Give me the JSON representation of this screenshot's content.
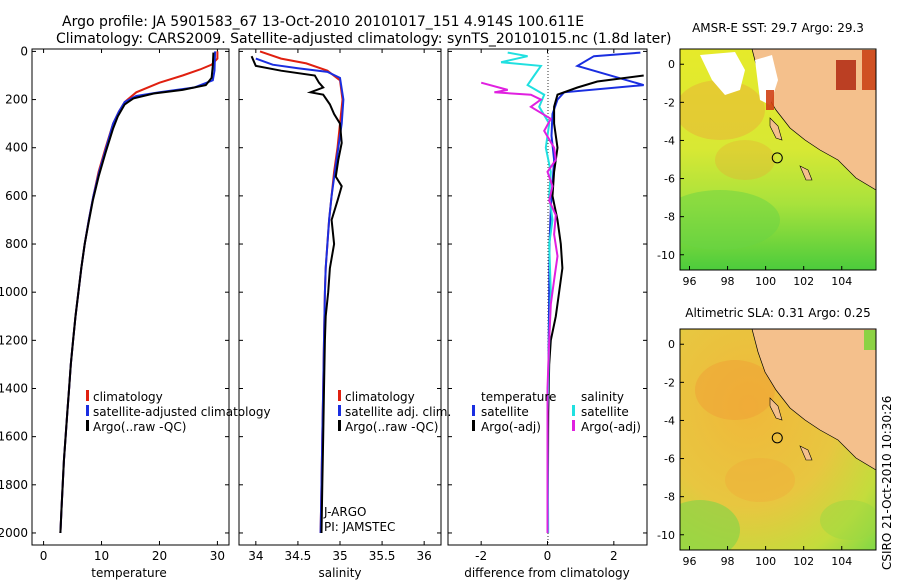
{
  "header": {
    "line1": "Argo profile: JA 5901583_67 13-Oct-2010 20101017_151 4.914S 100.611E",
    "line2": "Climatology: CARS2009. Satellite-adjusted climatology: synTS_20101015.nc (1.8d later)"
  },
  "side_stamp": "CSIRO 21-Oct-2010 10:30:26",
  "colors": {
    "climatology": "#e02010",
    "satellite": "#1a2ee0",
    "argo": "#000000",
    "argo_sal": "#e020e0",
    "sat_sal": "#20e0e0"
  },
  "chart_data": [
    {
      "type": "line",
      "id": "temperature",
      "xlabel": "temperature",
      "ylabel": "",
      "xlim": [
        -2,
        32
      ],
      "ylim": [
        2050,
        0
      ],
      "xticks": [
        0,
        10,
        20,
        30
      ],
      "xtick_labels": [
        "0",
        "10",
        "20",
        "30"
      ],
      "yticks": [
        0,
        200,
        400,
        600,
        800,
        1000,
        1200,
        1400,
        1600,
        1800,
        2000
      ],
      "ytick_labels": [
        "0",
        "200",
        "400",
        "600",
        "800",
        "1000",
        "1200",
        "1400",
        "1600",
        "1800",
        "2000"
      ],
      "legend": {
        "position": "bottom-right",
        "entries": [
          "climatology",
          "satellite-adjusted climatology",
          "Argo(..raw -QC)"
        ]
      },
      "series": [
        {
          "name": "climatology",
          "color": "#e02010",
          "points": [
            [
              30,
              0
            ],
            [
              30,
              30
            ],
            [
              29,
              55
            ],
            [
              27,
              75
            ],
            [
              24,
              100
            ],
            [
              20,
              130
            ],
            [
              16,
              170
            ],
            [
              14,
              210
            ],
            [
              13,
              250
            ],
            [
              12,
              300
            ],
            [
              10.7,
              400
            ],
            [
              9.5,
              500
            ],
            [
              8.6,
              600
            ],
            [
              7.8,
              700
            ],
            [
              7.1,
              800
            ],
            [
              6.5,
              900
            ],
            [
              6,
              1000
            ],
            [
              5.5,
              1100
            ],
            [
              5.1,
              1200
            ],
            [
              4.7,
              1300
            ],
            [
              4.4,
              1400
            ],
            [
              4.1,
              1500
            ],
            [
              3.8,
              1600
            ],
            [
              3.5,
              1700
            ],
            [
              3.3,
              1800
            ],
            [
              3.1,
              1900
            ],
            [
              2.9,
              2000
            ]
          ]
        },
        {
          "name": "satellite-adjusted climatology",
          "color": "#1a2ee0",
          "points": [
            [
              29.6,
              0
            ],
            [
              29.5,
              80
            ],
            [
              29.2,
              120
            ],
            [
              26,
              150
            ],
            [
              20,
              170
            ],
            [
              16,
              185
            ],
            [
              14,
              210
            ],
            [
              13,
              250
            ],
            [
              12,
              300
            ],
            [
              10.8,
              400
            ],
            [
              9.6,
              500
            ],
            [
              8.6,
              600
            ],
            [
              7.8,
              700
            ],
            [
              7.1,
              800
            ],
            [
              6.5,
              900
            ],
            [
              6,
              1000
            ],
            [
              5.5,
              1100
            ],
            [
              5.1,
              1200
            ],
            [
              4.7,
              1300
            ],
            [
              4.4,
              1400
            ],
            [
              4.1,
              1500
            ],
            [
              3.8,
              1600
            ],
            [
              3.5,
              1700
            ],
            [
              3.3,
              1800
            ],
            [
              3.1,
              1900
            ],
            [
              2.9,
              2000
            ]
          ]
        },
        {
          "name": "Argo(..raw -QC)",
          "color": "#000000",
          "points": [
            [
              29.3,
              5
            ],
            [
              29.2,
              60
            ],
            [
              29,
              110
            ],
            [
              28,
              140
            ],
            [
              24,
              160
            ],
            [
              19,
              175
            ],
            [
              15.5,
              195
            ],
            [
              14,
              220
            ],
            [
              12.8,
              270
            ],
            [
              12,
              320
            ],
            [
              10.7,
              420
            ],
            [
              9.5,
              520
            ],
            [
              8.5,
              620
            ],
            [
              7.7,
              720
            ],
            [
              7.1,
              800
            ],
            [
              6.5,
              900
            ],
            [
              6,
              1000
            ],
            [
              5.5,
              1100
            ],
            [
              5.1,
              1200
            ],
            [
              4.7,
              1300
            ],
            [
              4.4,
              1400
            ],
            [
              4.1,
              1500
            ],
            [
              3.8,
              1600
            ],
            [
              3.5,
              1700
            ],
            [
              3.3,
              1800
            ],
            [
              3.1,
              1900
            ],
            [
              2.9,
              2000
            ]
          ]
        }
      ]
    },
    {
      "type": "line",
      "id": "salinity",
      "xlabel": "salinity",
      "xlim": [
        33.8,
        36.2
      ],
      "ylim": [
        2050,
        0
      ],
      "xticks": [
        34,
        34.5,
        35,
        35.5,
        36
      ],
      "xtick_labels": [
        "34",
        "34.5",
        "35",
        "35.5",
        "36"
      ],
      "legend": {
        "position": "bottom-right",
        "entries": [
          "climatology",
          "satellite adj. clim.",
          "Argo(..raw -QC)"
        ]
      },
      "annotations": [
        "J-ARGO",
        "PI: JAMSTEC"
      ],
      "series": [
        {
          "name": "climatology",
          "color": "#e02010",
          "points": [
            [
              34.05,
              0
            ],
            [
              34.3,
              30
            ],
            [
              34.6,
              50
            ],
            [
              34.85,
              80
            ],
            [
              35,
              120
            ],
            [
              35.03,
              200
            ],
            [
              35,
              300
            ],
            [
              34.97,
              400
            ],
            [
              34.93,
              500
            ],
            [
              34.9,
              600
            ],
            [
              34.87,
              700
            ],
            [
              34.85,
              800
            ],
            [
              34.83,
              900
            ],
            [
              34.82,
              1000
            ],
            [
              34.81,
              1200
            ],
            [
              34.8,
              1400
            ],
            [
              34.79,
              1600
            ],
            [
              34.78,
              1800
            ],
            [
              34.77,
              2000
            ]
          ]
        },
        {
          "name": "satellite adj. clim.",
          "color": "#1a2ee0",
          "points": [
            [
              34,
              30
            ],
            [
              34.2,
              55
            ],
            [
              34.5,
              70
            ],
            [
              34.85,
              85
            ],
            [
              35,
              110
            ],
            [
              35.04,
              200
            ],
            [
              35.02,
              300
            ],
            [
              34.98,
              400
            ],
            [
              34.94,
              500
            ],
            [
              34.9,
              600
            ],
            [
              34.87,
              700
            ],
            [
              34.85,
              800
            ],
            [
              34.83,
              900
            ],
            [
              34.82,
              1000
            ],
            [
              34.81,
              1200
            ],
            [
              34.8,
              1400
            ],
            [
              34.79,
              1600
            ],
            [
              34.78,
              1800
            ],
            [
              34.77,
              2000
            ]
          ]
        },
        {
          "name": "Argo(..raw -QC)",
          "color": "#000000",
          "points": [
            [
              33.95,
              20
            ],
            [
              34,
              60
            ],
            [
              34.3,
              80
            ],
            [
              34.7,
              100
            ],
            [
              34.75,
              130
            ],
            [
              34.8,
              150
            ],
            [
              34.65,
              170
            ],
            [
              34.8,
              180
            ],
            [
              34.88,
              220
            ],
            [
              34.93,
              260
            ],
            [
              35,
              300
            ],
            [
              35.02,
              380
            ],
            [
              34.98,
              450
            ],
            [
              34.95,
              520
            ],
            [
              35.02,
              560
            ],
            [
              34.97,
              620
            ],
            [
              34.9,
              700
            ],
            [
              34.93,
              800
            ],
            [
              34.88,
              900
            ],
            [
              34.86,
              1000
            ],
            [
              34.83,
              1100
            ],
            [
              34.82,
              1200
            ],
            [
              34.81,
              1400
            ],
            [
              34.8,
              1600
            ],
            [
              34.79,
              1800
            ],
            [
              34.78,
              2000
            ]
          ]
        }
      ]
    },
    {
      "type": "line",
      "id": "difference",
      "xlabel": "difference from climatology",
      "xlim": [
        -3,
        3
      ],
      "ylim": [
        2050,
        0
      ],
      "xticks": [
        -2,
        0,
        2
      ],
      "xtick_labels": [
        "-2",
        "0",
        "2"
      ],
      "legend": {
        "position": "bottom",
        "temperature_title": "temperature",
        "salinity_title": "salinity",
        "entries": [
          "satellite",
          "Argo(-adj)",
          "satellite",
          "Argo(-adj)"
        ]
      },
      "series": [
        {
          "name": "satellite",
          "color": "#1a2ee0",
          "points": [
            [
              2.8,
              5
            ],
            [
              1.4,
              20
            ],
            [
              0.9,
              60
            ],
            [
              2.9,
              140
            ],
            [
              0.5,
              170
            ],
            [
              0.3,
              200
            ],
            [
              0.15,
              260
            ],
            [
              0.12,
              350
            ],
            [
              0.2,
              450
            ],
            [
              0.15,
              550
            ],
            [
              0.1,
              650
            ],
            [
              0.06,
              800
            ],
            [
              0.05,
              1000
            ],
            [
              0.02,
              1400
            ],
            [
              0,
              2000
            ]
          ]
        },
        {
          "name": "Argo(-adj)",
          "color": "#000000",
          "points": [
            [
              2.9,
              100
            ],
            [
              1.5,
              125
            ],
            [
              0.9,
              150
            ],
            [
              0.3,
              180
            ],
            [
              0.2,
              230
            ],
            [
              0.2,
              300
            ],
            [
              0.3,
              400
            ],
            [
              0.2,
              500
            ],
            [
              0.15,
              600
            ],
            [
              0.3,
              700
            ],
            [
              0.4,
              800
            ],
            [
              0.45,
              900
            ],
            [
              0.35,
              1000
            ],
            [
              0.25,
              1100
            ],
            [
              0.1,
              1200
            ],
            [
              0.05,
              1300
            ],
            [
              0.02,
              1500
            ],
            [
              0.01,
              2000
            ]
          ]
        },
        {
          "name": "satellite",
          "color": "#20e0e0",
          "points": [
            [
              -1.2,
              5
            ],
            [
              -0.6,
              20
            ],
            [
              -1.4,
              45
            ],
            [
              -0.2,
              60
            ],
            [
              -0.4,
              100
            ],
            [
              -0.6,
              140
            ],
            [
              -0.1,
              180
            ],
            [
              -0.25,
              230
            ],
            [
              0.05,
              300
            ],
            [
              -0.05,
              400
            ],
            [
              0.1,
              500
            ],
            [
              0.05,
              600
            ],
            [
              0.15,
              700
            ],
            [
              0.05,
              800
            ],
            [
              0.1,
              1000
            ],
            [
              0.05,
              1200
            ],
            [
              0,
              1500
            ],
            [
              0.02,
              2000
            ]
          ]
        },
        {
          "name": "Argo(-adj)",
          "color": "#e020e0",
          "points": [
            [
              -2,
              130
            ],
            [
              -1.2,
              160
            ],
            [
              -1.6,
              170
            ],
            [
              -0.5,
              180
            ],
            [
              -0.2,
              200
            ],
            [
              -0.5,
              230
            ],
            [
              0.1,
              280
            ],
            [
              -0.1,
              330
            ],
            [
              0.2,
              400
            ],
            [
              0.25,
              450
            ],
            [
              0,
              500
            ],
            [
              0.15,
              560
            ],
            [
              0.05,
              620
            ],
            [
              0.25,
              680
            ],
            [
              0.2,
              760
            ],
            [
              0.3,
              850
            ],
            [
              0.2,
              950
            ],
            [
              0.1,
              1050
            ],
            [
              0.05,
              1200
            ],
            [
              0,
              1400
            ],
            [
              0,
              2000
            ]
          ]
        }
      ]
    },
    {
      "type": "heatmap",
      "id": "sst-map",
      "title": "AMSR-E SST: 29.7  Argo: 29.3",
      "xlim": [
        95.5,
        105.8
      ],
      "ylim": [
        -10.8,
        0.8
      ],
      "xticks": [
        96,
        98,
        100,
        102,
        104
      ],
      "yticks": [
        0,
        -2,
        -4,
        -6,
        -8,
        -10
      ],
      "argo_position": [
        100.611,
        -4.914
      ]
    },
    {
      "type": "heatmap",
      "id": "sla-map",
      "title": "Altimetric SLA: 0.31  Argo: 0.25",
      "xlim": [
        95.5,
        105.8
      ],
      "ylim": [
        -10.8,
        0.8
      ],
      "xticks": [
        96,
        98,
        100,
        102,
        104
      ],
      "yticks": [
        0,
        -2,
        -4,
        -6,
        -8,
        -10
      ],
      "argo_position": [
        100.611,
        -4.914
      ]
    }
  ]
}
